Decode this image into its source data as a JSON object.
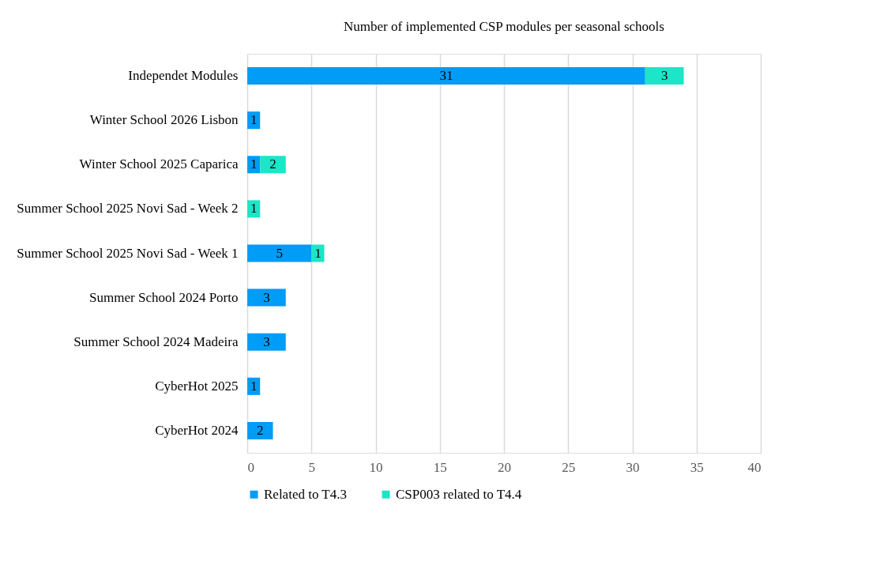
{
  "chart_data": {
    "type": "bar",
    "orientation": "horizontal",
    "stacked": true,
    "title": "Number of implemented CSP modules per seasonal schools",
    "categories": [
      "Independet Modules",
      "Winter School 2026 Lisbon",
      "Winter School 2025 Caparica",
      "Summer School 2025 Novi Sad - Week 2",
      "Summer School 2025 Novi Sad - Week 1",
      "Summer School 2024 Porto",
      "Summer School 2024 Madeira",
      "CyberHot 2025",
      "CyberHot 2024"
    ],
    "series": [
      {
        "name": "Related to T4.3",
        "color": "#009cf5",
        "values": [
          31,
          1,
          1,
          null,
          5,
          3,
          3,
          1,
          2
        ]
      },
      {
        "name": "CSP003 related to T4.4",
        "color": "#1de5c7",
        "values": [
          3,
          null,
          2,
          1,
          1,
          null,
          null,
          null,
          null
        ]
      }
    ],
    "xlim": [
      0,
      40
    ],
    "xticks": [
      0,
      5,
      10,
      15,
      20,
      25,
      30,
      35,
      40
    ],
    "grid": "x",
    "legend": "bottom",
    "data_labels": true
  }
}
